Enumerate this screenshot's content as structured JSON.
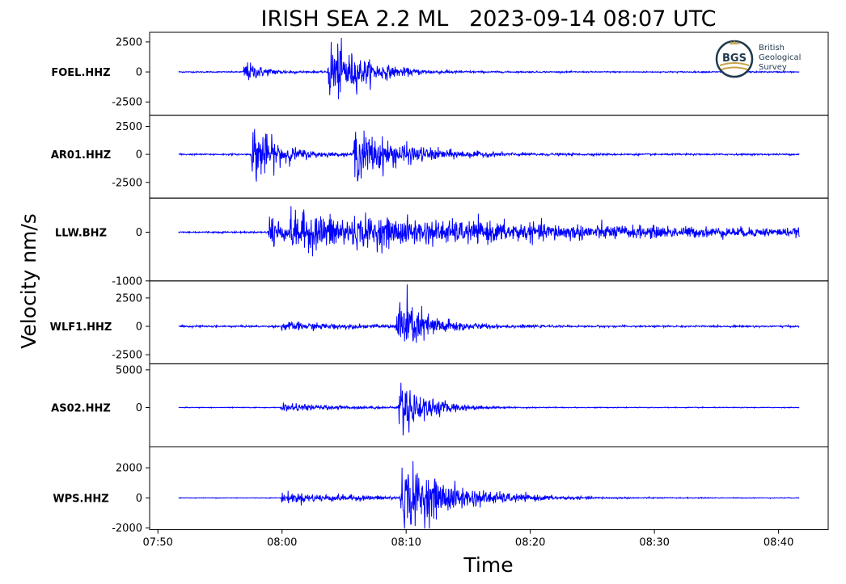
{
  "chart_data": {
    "type": "line",
    "title": "IRISH SEA 2.2 ML   2023-09-14 08:07 UTC",
    "xlabel": "Time",
    "ylabel": "Velocity nm/s",
    "xlim": [
      "07:49:20",
      "08:44:00"
    ],
    "x_ticks": [
      "07:50",
      "08:00",
      "08:10",
      "08:20",
      "08:30",
      "08:40"
    ],
    "grid": false,
    "line_color": "#0000ff",
    "record_start": "07:51:40",
    "record_end": "08:41:40",
    "panels": [
      {
        "name": "FOEL.HHZ",
        "ylim": [
          -3600,
          3300
        ],
        "y_ticks": [
          {
            "v": 2500,
            "label": "2500"
          },
          {
            "v": 0,
            "label": "0"
          },
          {
            "v": -2500,
            "label": "-2500"
          }
        ],
        "noise": 60,
        "phases": [
          {
            "onset": "07:56:50",
            "peak": 1200,
            "decay_s": 90
          },
          {
            "onset": "08:03:40",
            "peak": 3600,
            "decay_s": 160
          }
        ]
      },
      {
        "name": "AR01.HHZ",
        "ylim": [
          -3900,
          3500
        ],
        "y_ticks": [
          {
            "v": 2500,
            "label": "2500"
          },
          {
            "v": 0,
            "label": "0"
          },
          {
            "v": -2500,
            "label": "-2500"
          }
        ],
        "noise": 80,
        "phases": [
          {
            "onset": "07:57:30",
            "peak": 3600,
            "decay_s": 120
          },
          {
            "onset": "08:05:40",
            "peak": 2800,
            "decay_s": 240
          }
        ]
      },
      {
        "name": "LLW.BHZ",
        "ylim": [
          -1000,
          700
        ],
        "y_ticks": [
          {
            "v": 0,
            "label": "0"
          },
          {
            "v": -1000,
            "label": "-1000"
          }
        ],
        "noise": 20,
        "phases": [
          {
            "onset": "07:58:50",
            "peak": 700,
            "decay_s": 60
          },
          {
            "onset": "08:00:30",
            "peak": 450,
            "decay_s": 1400
          }
        ]
      },
      {
        "name": "WLF1.HHZ",
        "ylim": [
          -3300,
          4000
        ],
        "y_ticks": [
          {
            "v": 2500,
            "label": "2500"
          },
          {
            "v": 0,
            "label": "0"
          },
          {
            "v": -2500,
            "label": "-2500"
          }
        ],
        "noise": 90,
        "phases": [
          {
            "onset": "07:59:50",
            "peak": 450,
            "decay_s": 300
          },
          {
            "onset": "08:09:10",
            "peak": 3800,
            "decay_s": 140
          }
        ]
      },
      {
        "name": "AS02.HHZ",
        "ylim": [
          -5200,
          5800
        ],
        "y_ticks": [
          {
            "v": 5000,
            "label": "5000"
          },
          {
            "v": 0,
            "label": "0"
          }
        ],
        "noise": 60,
        "phases": [
          {
            "onset": "07:59:50",
            "peak": 600,
            "decay_s": 300
          },
          {
            "onset": "08:09:20",
            "peak": 5000,
            "decay_s": 130
          }
        ]
      },
      {
        "name": "WPS.HHZ",
        "ylim": [
          -2100,
          3400
        ],
        "y_ticks": [
          {
            "v": 2000,
            "label": "2000"
          },
          {
            "v": 0,
            "label": "0"
          },
          {
            "v": -2000,
            "label": "-2000"
          }
        ],
        "noise": 25,
        "phases": [
          {
            "onset": "07:59:50",
            "peak": 400,
            "decay_s": 500
          },
          {
            "onset": "08:09:30",
            "peak": 2800,
            "decay_s": 250
          }
        ]
      }
    ]
  },
  "logo": {
    "badge": "BGS",
    "line1": "British",
    "line2": "Geological",
    "line3": "Survey",
    "color": "#1f3a4d",
    "accent": "#c8a24a"
  }
}
